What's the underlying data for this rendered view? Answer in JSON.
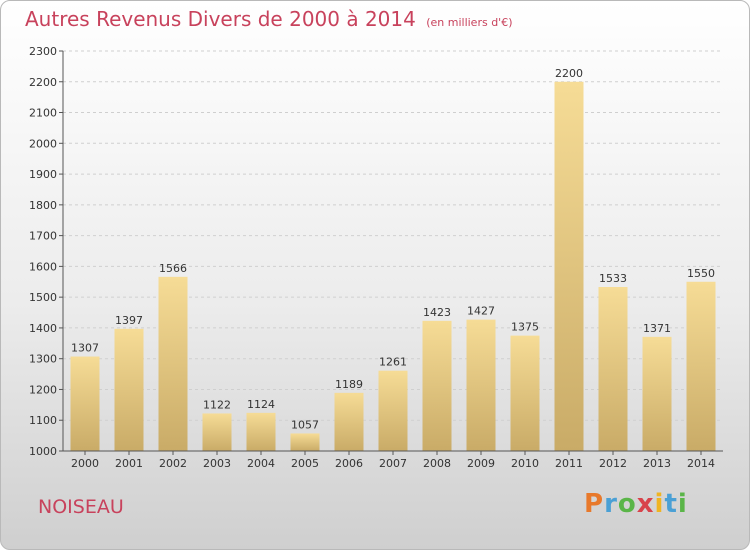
{
  "header": {
    "title": "Autres Revenus Divers de 2000 à 2014",
    "subtitle": "(en milliers d'€)"
  },
  "footer": {
    "place": "NOISEAU",
    "logo": [
      "P",
      "r",
      "o",
      "x",
      "i",
      "t",
      "i"
    ],
    "logo_colors": [
      "#e8792b",
      "#4aa0d5",
      "#5ab548",
      "#d8434b",
      "#f0b422",
      "#4aa0d5",
      "#5ab548"
    ]
  },
  "chart_data": {
    "type": "bar",
    "title": "Autres Revenus Divers de 2000 à 2014",
    "categories": [
      "2000",
      "2001",
      "2002",
      "2003",
      "2004",
      "2005",
      "2006",
      "2007",
      "2008",
      "2009",
      "2010",
      "2011",
      "2012",
      "2013",
      "2014"
    ],
    "values": [
      1307,
      1397,
      1566,
      1122,
      1124,
      1057,
      1189,
      1261,
      1423,
      1427,
      1375,
      2200,
      1533,
      1371,
      1550
    ],
    "ylim": [
      1000,
      2300
    ],
    "yticks": [
      1000,
      1100,
      1200,
      1300,
      1400,
      1500,
      1600,
      1700,
      1800,
      1900,
      2000,
      2100,
      2200,
      2300
    ],
    "grid": true,
    "bar_color_light": "#f6dc96",
    "bar_color_dark": "#c9ab67",
    "title_color": "#c8425c"
  }
}
